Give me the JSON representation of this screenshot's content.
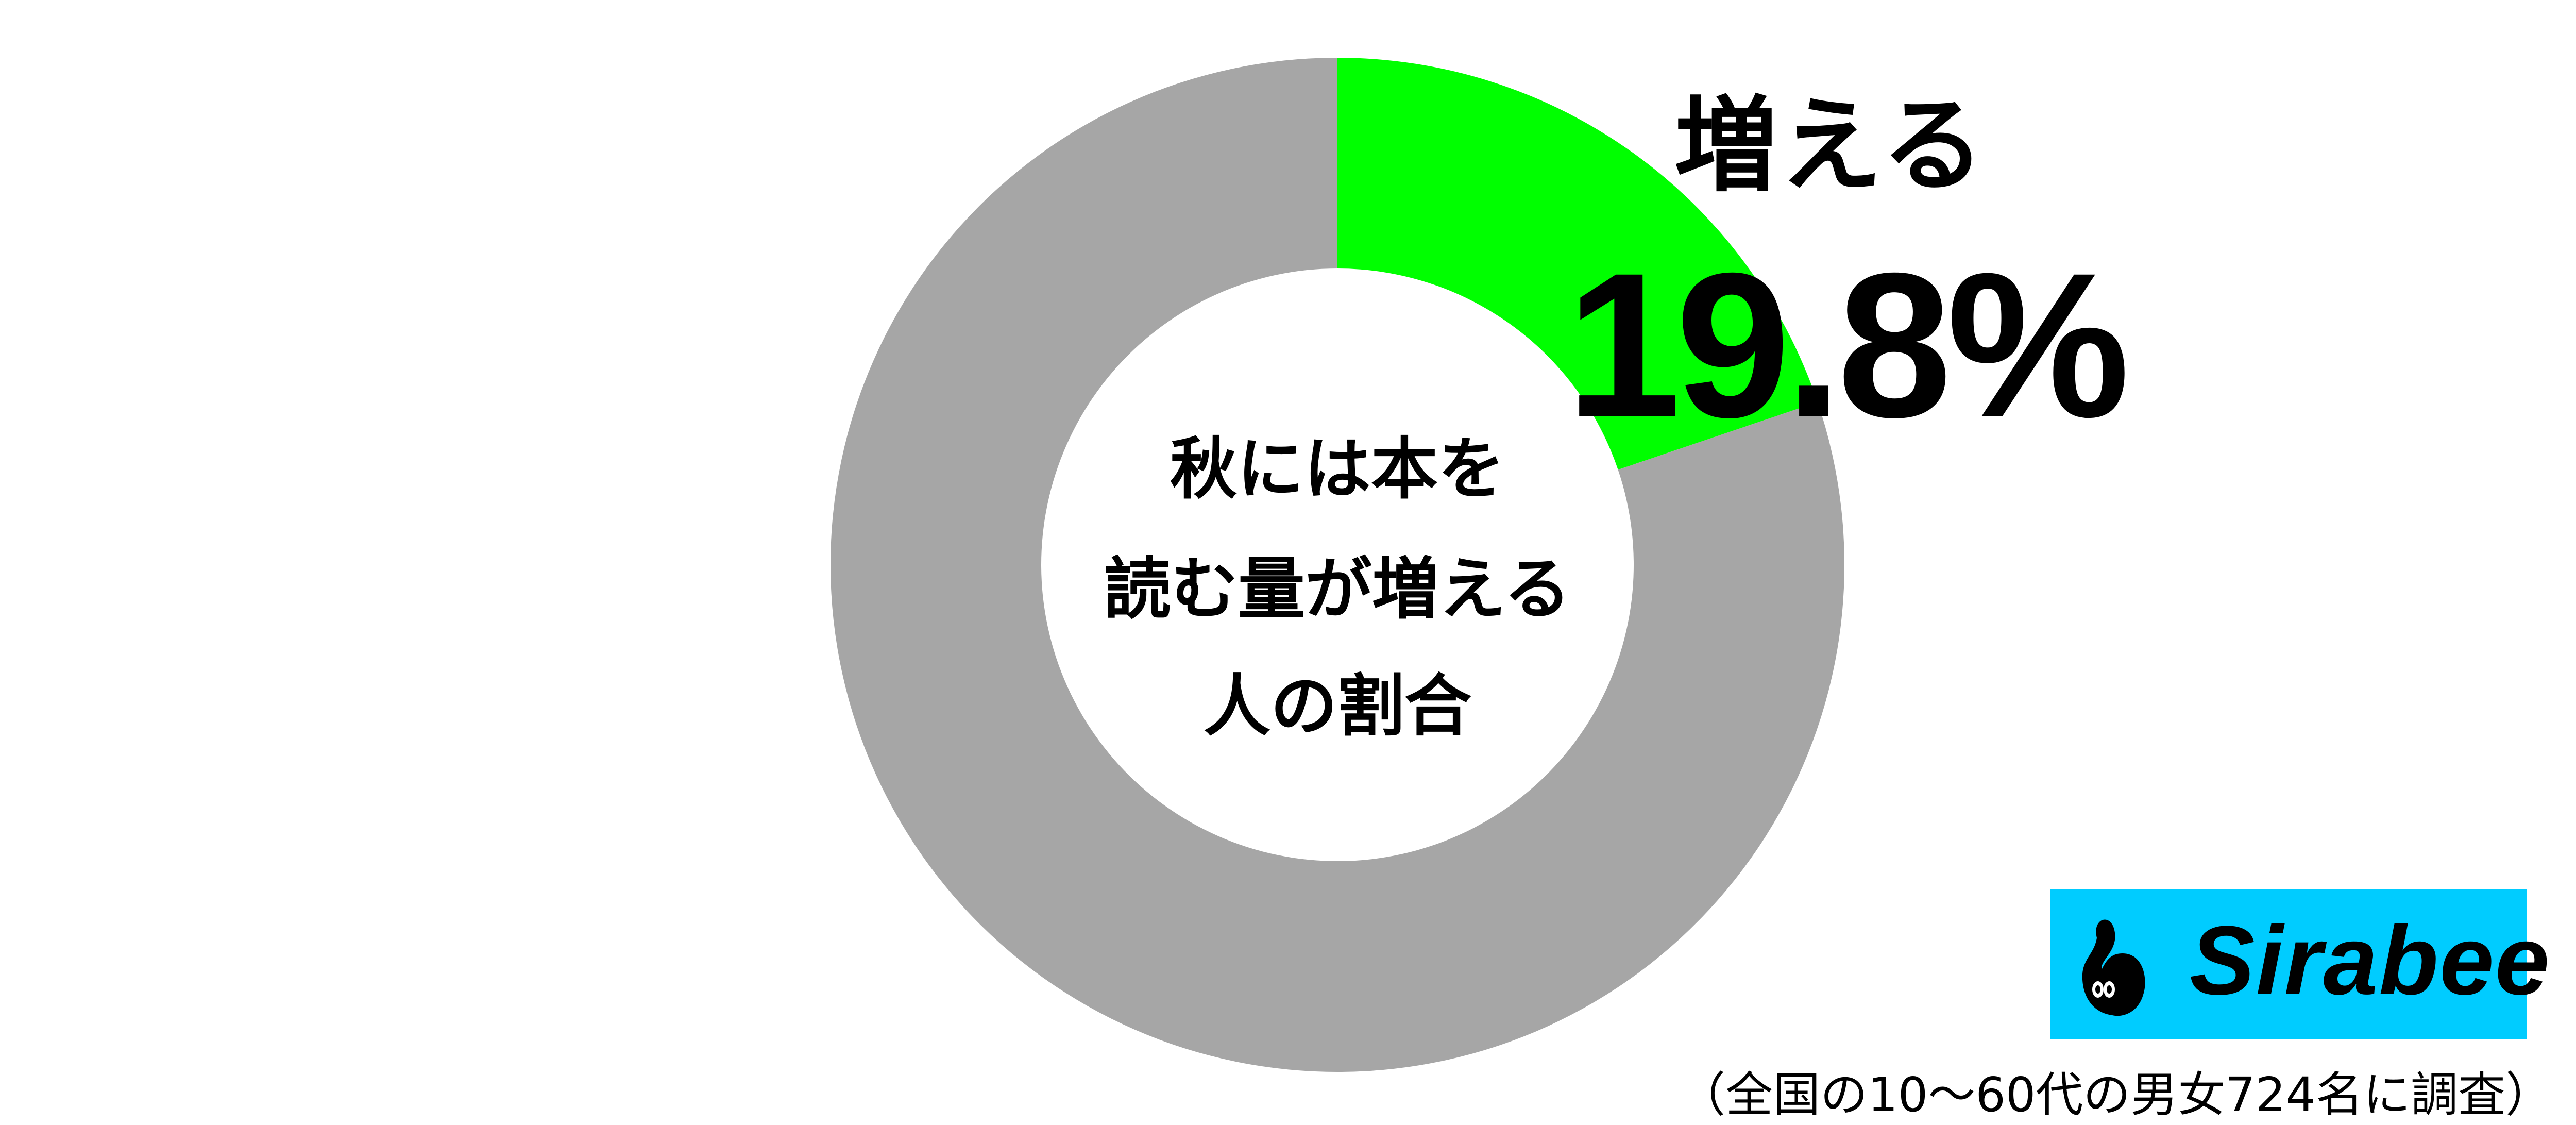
{
  "chart_data": {
    "type": "pie",
    "donut": true,
    "center_label": [
      "秋には本を",
      "読む量が増える",
      "人の割合"
    ],
    "slices": [
      {
        "name": "増える",
        "value": 19.8,
        "color": "#00ff00"
      },
      {
        "value": 80.2,
        "color": "#a6a6a6"
      }
    ],
    "highlight": {
      "label": "増える",
      "value_text": "19.8%"
    }
  },
  "logo": {
    "text": "Sirabee",
    "background": "#00ccff"
  },
  "footnote": "（全国の10〜60代の男女724名に調査）"
}
